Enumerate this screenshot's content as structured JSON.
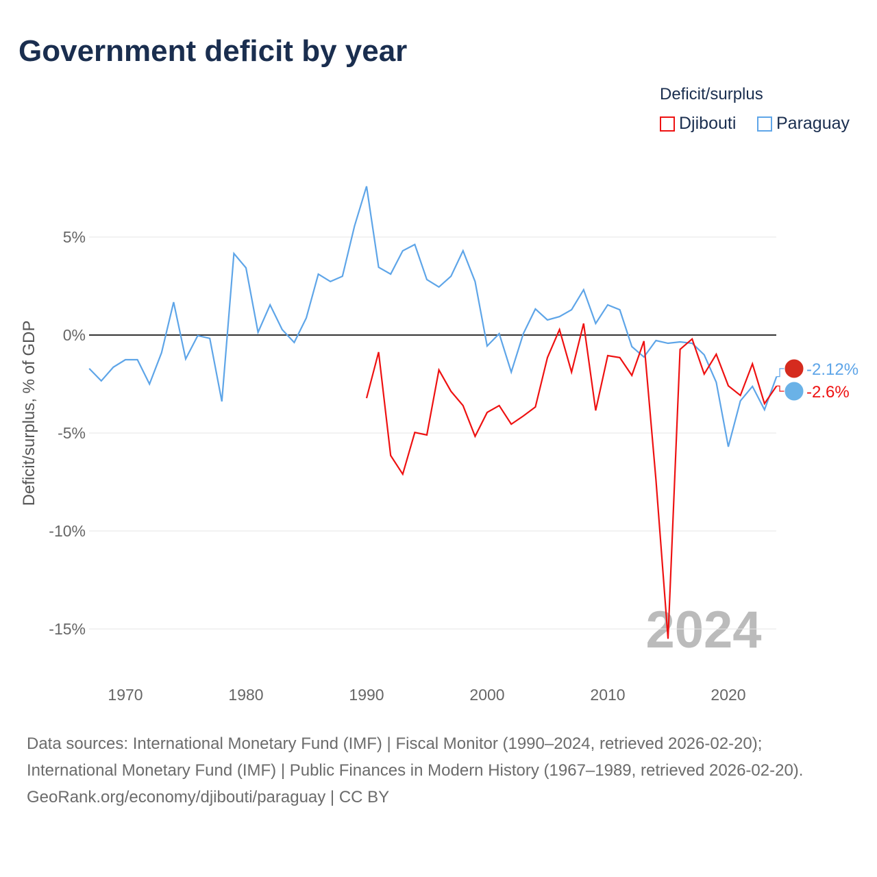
{
  "title": "Government deficit by year",
  "legend": {
    "title": "Deficit/surplus",
    "items": [
      {
        "label": "Djibouti",
        "color": "#ee1111"
      },
      {
        "label": "Paraguay",
        "color": "#5ea5e8"
      }
    ]
  },
  "year_watermark": "2024",
  "footer": {
    "sources": "Data sources: International Monetary Fund (IMF) | Fiscal Monitor (1990–2024, retrieved 2026-02-20); International Monetary Fund (IMF) | Public Finances in Modern History (1967–1989, retrieved 2026-02-20).",
    "credit": "GeoRank.org/economy/djibouti/paraguay | CC BY"
  },
  "chart_data": {
    "type": "line",
    "title": "Government deficit by year",
    "ylabel": "Deficit/surplus, % of GDP",
    "xlim": [
      1967,
      2024
    ],
    "ylim": [
      -17,
      9
    ],
    "xticks": [
      1970,
      1980,
      1990,
      2000,
      2010,
      2020
    ],
    "yticks": [
      {
        "v": 5,
        "label": "5%"
      },
      {
        "v": 0,
        "label": "0%"
      },
      {
        "v": -5,
        "label": "-5%"
      },
      {
        "v": -10,
        "label": "-10%"
      },
      {
        "v": -15,
        "label": "-15%"
      }
    ],
    "series": [
      {
        "name": "Paraguay",
        "color": "#5ea5e8",
        "end_label": "-2.12%",
        "start": 1967,
        "values": [
          -1.71,
          -2.34,
          -1.64,
          -1.26,
          -1.26,
          -2.5,
          -0.9,
          1.68,
          -1.22,
          -0.03,
          -0.17,
          -3.39,
          4.16,
          3.43,
          0.14,
          1.54,
          0.28,
          -0.38,
          0.87,
          3.11,
          2.73,
          3.0,
          5.56,
          7.59,
          3.46,
          3.11,
          4.3,
          4.62,
          2.83,
          2.45,
          3.0,
          4.3,
          2.73,
          -0.56,
          0.07,
          -1.89,
          0.07,
          1.33,
          0.77,
          0.94,
          1.29,
          2.31,
          0.59,
          1.54,
          1.29,
          -0.59,
          -1.12,
          -0.28,
          -0.42,
          -0.35,
          -0.42,
          -1.01,
          -2.41,
          -5.7,
          -3.36,
          -2.62,
          -3.81,
          -2.12
        ]
      },
      {
        "name": "Djibouti",
        "color": "#ee1111",
        "end_label": "-2.6%",
        "start": 1990,
        "values": [
          -3.22,
          -0.87,
          -6.15,
          -7.1,
          -4.97,
          -5.1,
          -1.78,
          -2.87,
          -3.6,
          -5.17,
          -3.95,
          -3.6,
          -4.55,
          -4.13,
          -3.67,
          -1.15,
          0.28,
          -1.89,
          0.59,
          -3.85,
          -1.05,
          -1.15,
          -2.06,
          -0.31,
          -7.4,
          -15.5,
          -0.73,
          -0.2,
          -1.99,
          -0.98,
          -2.59,
          -3.08,
          -1.47,
          -3.5,
          -2.6
        ]
      }
    ]
  }
}
